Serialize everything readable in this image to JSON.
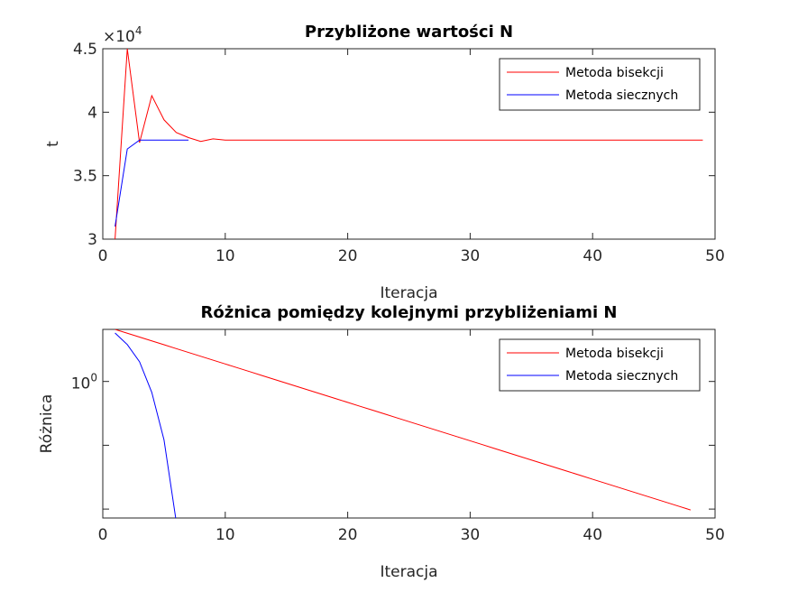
{
  "chart_data": [
    {
      "type": "line",
      "title": "Przybliżone wartości N",
      "xlabel": "Iteracja",
      "ylabel": "t",
      "axis_multiplier": {
        "base": "×10",
        "exponent": "4"
      },
      "xlim": [
        0,
        50
      ],
      "xticks": [
        0,
        10,
        20,
        30,
        40,
        50
      ],
      "ylim": [
        3,
        4.5
      ],
      "yticks": [
        3,
        3.5,
        4,
        4.5
      ],
      "log_y": false,
      "legend": "upper right",
      "series": [
        {
          "name": "Metoda bisekcji",
          "color": "#ff0000",
          "x": [
            1,
            2,
            3,
            4,
            5,
            6,
            7,
            8,
            9,
            10,
            11,
            12,
            13,
            14,
            15,
            16,
            17,
            18,
            19,
            20,
            21,
            22,
            23,
            24,
            25,
            26,
            27,
            28,
            29,
            30,
            31,
            32,
            33,
            34,
            35,
            36,
            37,
            38,
            39,
            40,
            41,
            42,
            43,
            44,
            45,
            46,
            47,
            48,
            49
          ],
          "values": [
            3.0,
            4.5,
            3.76,
            4.13,
            3.94,
            3.84,
            3.8,
            3.77,
            3.79,
            3.78,
            3.78,
            3.78,
            3.78,
            3.78,
            3.78,
            3.78,
            3.78,
            3.78,
            3.78,
            3.78,
            3.78,
            3.78,
            3.78,
            3.78,
            3.78,
            3.78,
            3.78,
            3.78,
            3.78,
            3.78,
            3.78,
            3.78,
            3.78,
            3.78,
            3.78,
            3.78,
            3.78,
            3.78,
            3.78,
            3.78,
            3.78,
            3.78,
            3.78,
            3.78,
            3.78,
            3.78,
            3.78,
            3.78,
            3.78
          ]
        },
        {
          "name": "Metoda siecznych",
          "color": "#0000ff",
          "x": [
            1,
            2,
            3,
            4,
            5,
            6,
            7
          ],
          "values": [
            3.1,
            3.71,
            3.78,
            3.78,
            3.78,
            3.78,
            3.78
          ]
        }
      ]
    },
    {
      "type": "line",
      "title": "Różnica pomiędzy kolejnymi przybliżeniami N",
      "xlabel": "Iteracja",
      "ylabel": "Różnica",
      "xlim": [
        0,
        50
      ],
      "xticks": [
        0,
        10,
        20,
        30,
        40,
        50
      ],
      "ylim": [
        2e-11,
        12000
      ],
      "log_y": true,
      "legend": "upper right",
      "yticks": [
        {
          "value": 1e-10,
          "label": null
        },
        {
          "value": 1e-05,
          "label": null
        },
        {
          "value": 1,
          "label": "10",
          "exponent": "0"
        }
      ],
      "series": [
        {
          "name": "Metoda bisekcji",
          "color": "#ff0000",
          "x": [
            1,
            2,
            3,
            4,
            5,
            6,
            7,
            8,
            9,
            10,
            11,
            12,
            13,
            14,
            15,
            16,
            17,
            18,
            19,
            20,
            21,
            22,
            23,
            24,
            25,
            26,
            27,
            28,
            29,
            30,
            31,
            32,
            33,
            34,
            35,
            36,
            37,
            38,
            39,
            40,
            41,
            42,
            43,
            44,
            45,
            46,
            47,
            48
          ],
          "values": [
            12000,
            6000,
            3000,
            1500,
            750,
            375,
            187.5,
            93.8,
            46.9,
            23.4,
            11.7,
            5.86,
            2.93,
            1.46,
            0.732,
            0.366,
            0.183,
            0.0916,
            0.0458,
            0.0229,
            0.0114,
            0.00572,
            0.00286,
            0.00143,
            0.000715,
            0.000358,
            0.000179,
            8.94e-05,
            4.47e-05,
            2.24e-05,
            1.12e-05,
            5.59e-06,
            2.79e-06,
            1.4e-06,
            6.98e-07,
            3.49e-07,
            1.75e-07,
            8.73e-08,
            4.37e-08,
            2.18e-08,
            1.09e-08,
            5.46e-09,
            2.73e-09,
            1.36e-09,
            6.82e-10,
            3.41e-10,
            1.71e-10,
            8.53e-11
          ]
        },
        {
          "name": "Metoda siecznych",
          "color": "#0000ff",
          "x": [
            1,
            2,
            3,
            4,
            5,
            6
          ],
          "values": [
            6300,
            776,
            35,
            0.14,
            2.6e-05,
            1e-11
          ]
        }
      ]
    }
  ]
}
